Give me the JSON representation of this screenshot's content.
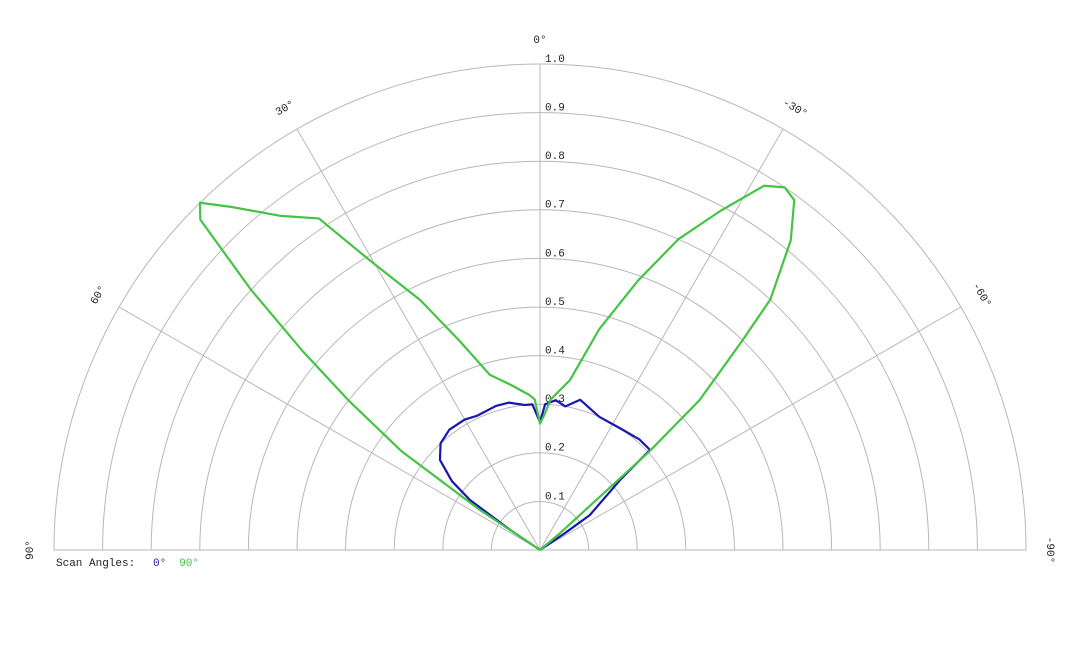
{
  "chart_data": {
    "type": "polar",
    "legend_title": "Scan Angles:",
    "rlim": [
      0,
      1
    ],
    "rticks": [
      0.1,
      0.2,
      0.3,
      0.4,
      0.5,
      0.6,
      0.7,
      0.8,
      0.9,
      {
        "value": 1,
        "label": "1.0"
      }
    ],
    "thetalim": [
      -90,
      90
    ],
    "thetaticks": [
      {
        "value": 90,
        "label": "90°"
      },
      {
        "value": 60,
        "label": "60°"
      },
      {
        "value": 30,
        "label": "30°"
      },
      {
        "value": 0,
        "label": "0°"
      },
      {
        "value": -30,
        "label": "-30°"
      },
      {
        "value": -60,
        "label": "-60°"
      },
      {
        "value": -90,
        "label": "-90°"
      }
    ],
    "grid": true,
    "series": [
      {
        "name": "0°",
        "color": "#1818b0",
        "x": [
          -90,
          -60,
          -56,
          -55,
          -48.8,
          -47.7,
          -42,
          -34,
          -24,
          -15,
          -10,
          -6,
          -2,
          0,
          3,
          6,
          12,
          17,
          25,
          30,
          37,
          43,
          48,
          52,
          54.5,
          56,
          58,
          90
        ],
        "values": [
          0,
          0,
          0.06,
          0.125,
          0.22,
          0.306,
          0.306,
          0.3,
          0.3,
          0.32,
          0.3,
          0.31,
          0.3,
          0.263,
          0.3,
          0.3,
          0.31,
          0.31,
          0.305,
          0.31,
          0.31,
          0.3,
          0.277,
          0.23,
          0.177,
          0.074,
          0,
          0
        ]
      },
      {
        "name": "90°",
        "color": "#44c444",
        "x": [
          -90,
          -60,
          -50,
          -48,
          -46.8,
          -44,
          -42.6,
          -39,
          -36,
          -34,
          -31.6,
          -28,
          -24,
          -20,
          -15,
          -10,
          -4,
          -2,
          0,
          2,
          4,
          10,
          16,
          21,
          25.6,
          30.4,
          33.7,
          37.8,
          42,
          44.4,
          45.8,
          48,
          50,
          52,
          54.5,
          56.3,
          58,
          90
        ],
        "values": [
          0,
          0,
          0.05,
          0.3,
          0.45,
          0.6,
          0.7,
          0.82,
          0.89,
          0.9,
          0.88,
          0.79,
          0.7,
          0.59,
          0.47,
          0.355,
          0.31,
          0.28,
          0.26,
          0.31,
          0.32,
          0.345,
          0.375,
          0.46,
          0.57,
          0.69,
          0.82,
          0.87,
          0.95,
          1,
          0.975,
          0.8,
          0.64,
          0.5,
          0.35,
          0.15,
          0,
          0
        ]
      }
    ]
  }
}
